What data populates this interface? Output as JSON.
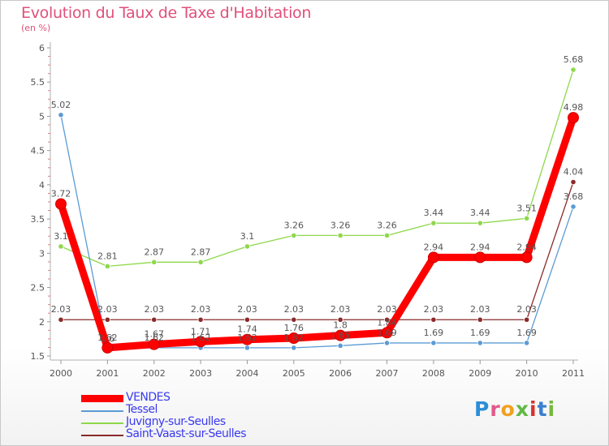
{
  "header": {
    "title": "Evolution du Taux de Taxe d'Habitation",
    "subtitle": "(en %)"
  },
  "logo": {
    "text": "Proxiti",
    "letter_colors": [
      "#2a8ed8",
      "#e05a8c",
      "#f2a01e",
      "#62b946",
      "#d5332e",
      "#3a7fd1",
      "#76b83f"
    ]
  },
  "chart_data": {
    "type": "line",
    "title": "Evolution du Taux de Taxe d'Habitation",
    "ylabel": "(en %)",
    "xlabel": "",
    "x": [
      "2000",
      "2001",
      "2002",
      "2003",
      "2004",
      "2005",
      "2006",
      "2007",
      "2008",
      "2009",
      "2010",
      "2011"
    ],
    "ylim": [
      1.5,
      6
    ],
    "yticks": [
      "1.5",
      "2",
      "2.5",
      "3",
      "3.5",
      "4",
      "4.5",
      "5",
      "5.5",
      "6"
    ],
    "grid": false,
    "legend": "bottom-left",
    "series": [
      {
        "name": "VENDES",
        "color": "#ff0000",
        "emphasis": true,
        "values": [
          3.72,
          1.62,
          1.67,
          1.71,
          1.74,
          1.76,
          1.8,
          1.84,
          2.94,
          2.94,
          2.94,
          4.98
        ],
        "labels": [
          "3.72",
          "1.62",
          "1.67",
          "1.71",
          "1.74",
          "1.76",
          "1.8",
          "1.84",
          "2.94",
          "2.94",
          "2.94",
          "4.98"
        ]
      },
      {
        "name": "Tessel",
        "color": "#5b9bd5",
        "emphasis": false,
        "values": [
          5.02,
          1.6,
          1.62,
          1.62,
          1.62,
          1.62,
          1.65,
          1.69,
          1.69,
          1.69,
          1.69,
          3.68
        ],
        "labels": [
          "5.02",
          "1.6",
          "1.62",
          "1.62",
          "1.62",
          "1.62",
          "1.65",
          "1.69",
          "1.69",
          "1.69",
          "1.69",
          "3.68"
        ]
      },
      {
        "name": "Juvigny-sur-Seulles",
        "color": "#8ed84a",
        "emphasis": false,
        "values": [
          3.1,
          2.81,
          2.87,
          2.87,
          3.1,
          3.26,
          3.26,
          3.26,
          3.44,
          3.44,
          3.51,
          5.68
        ],
        "labels": [
          "3.1",
          "2.81",
          "2.87",
          "2.87",
          "3.1",
          "3.26",
          "3.26",
          "3.26",
          "3.44",
          "3.44",
          "3.51",
          "5.68"
        ]
      },
      {
        "name": "Saint-Vaast-sur-Seulles",
        "color": "#8b2a2a",
        "emphasis": false,
        "values": [
          2.03,
          2.03,
          2.03,
          2.03,
          2.03,
          2.03,
          2.03,
          2.03,
          2.03,
          2.03,
          2.03,
          4.04
        ],
        "labels": [
          "2.03",
          "2.03",
          "2.03",
          "2.03",
          "2.03",
          "2.03",
          "2.03",
          "2.03",
          "2.03",
          "2.03",
          "2.03",
          "4.04"
        ]
      }
    ]
  }
}
